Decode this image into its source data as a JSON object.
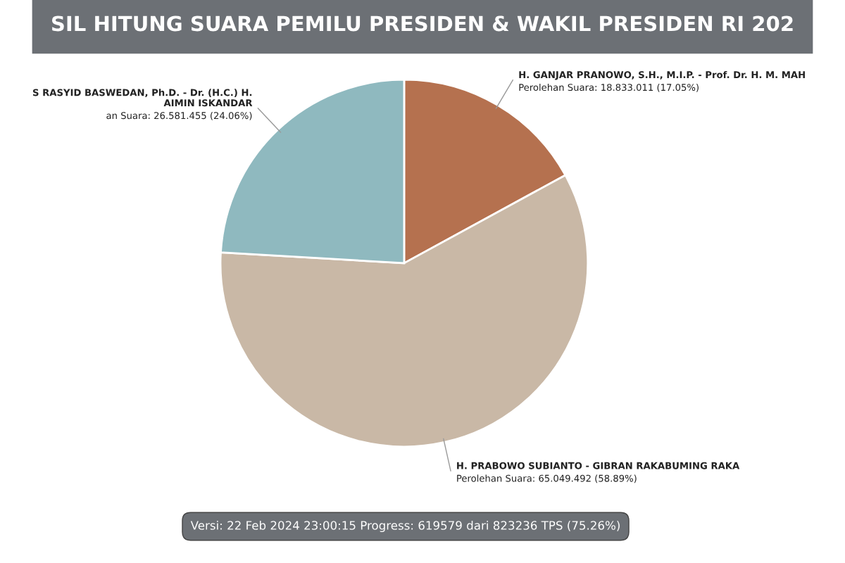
{
  "chart_data": {
    "type": "pie",
    "title": "SIL HITUNG SUARA PEMILU PRESIDEN & WAKIL PRESIDEN RI 202",
    "categories": [
      "H. GANJAR PRANOWO, S.H., M.I.P. - Prof. Dr. H. M. MAH",
      "H. PRABOWO SUBIANTO - GIBRAN RAKABUMING RAKA",
      "S RASYID BASWEDAN, Ph.D. - Dr. (H.C.) H.\nAIMIN ISKANDAR"
    ],
    "values": [
      18833011,
      65049492,
      26581455
    ],
    "colors": [
      "#b5714f",
      "#c9b8a6",
      "#8fb9bf"
    ],
    "value_labels": [
      "Perolehan Suara: 18.833.011 (17.05%)",
      "Perolehan Suara: 65.049.492 (58.89%)",
      "an Suara: 26.581.455 (24.06%)"
    ],
    "annotations": [
      "Versi: 22 Feb 2024 23:00:15 Progress: 619579 dari 823236 TPS (75.26%)"
    ]
  }
}
